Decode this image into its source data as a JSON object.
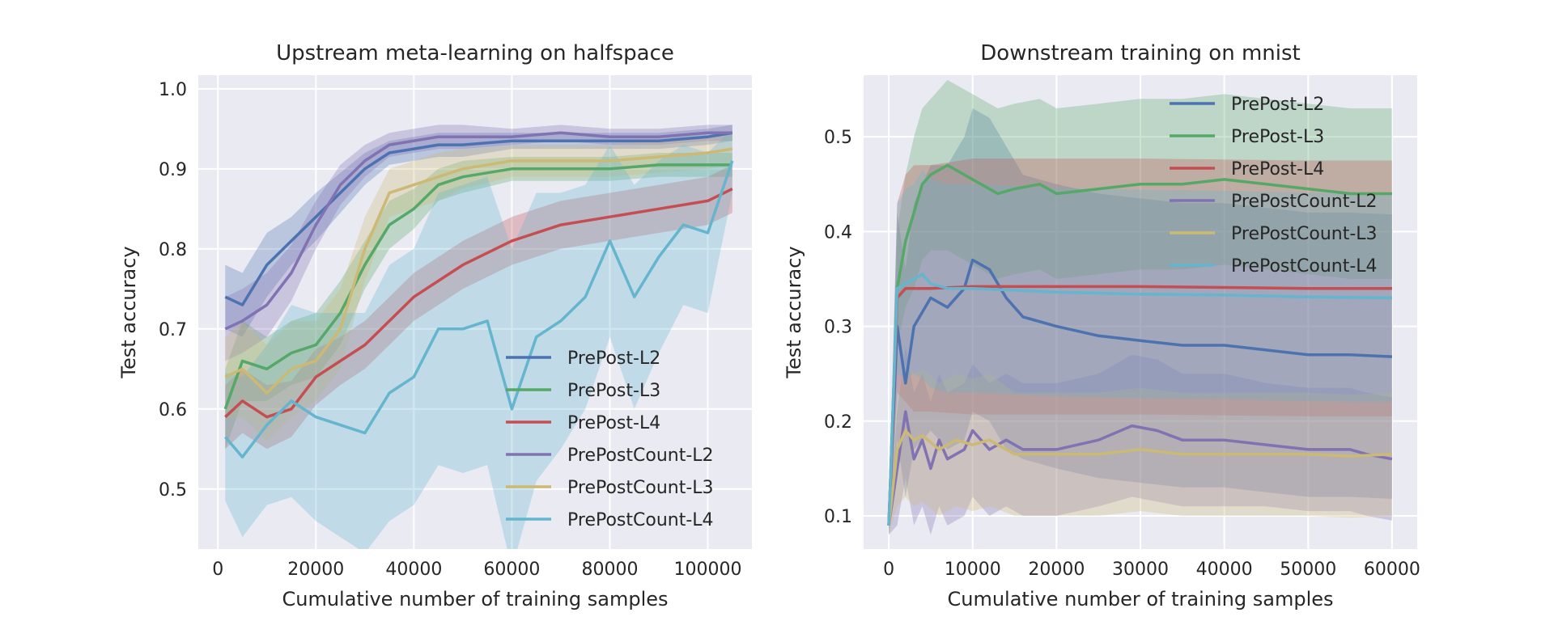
{
  "chart_data": [
    {
      "type": "line",
      "title": "Upstream meta-learning on halfspace",
      "xlabel": "Cumulative number of training samples",
      "ylabel": "Test accuracy",
      "xlim": [
        -4000,
        109000
      ],
      "ylim": [
        0.425,
        1.017
      ],
      "xticks": [
        0,
        20000,
        40000,
        60000,
        80000,
        100000
      ],
      "xtick_labels": [
        "0",
        "20000",
        "40000",
        "60000",
        "80000",
        "100000"
      ],
      "yticks": [
        0.5,
        0.6,
        0.7,
        0.8,
        0.9,
        1.0
      ],
      "ytick_labels": [
        "0.5",
        "0.6",
        "0.7",
        "0.8",
        "0.9",
        "1.0"
      ],
      "grid": true,
      "legend_position": "lower-right",
      "series": [
        {
          "name": "PrePost-L2",
          "color": "#4c72b0",
          "x": [
            1500,
            5000,
            10000,
            15000,
            20000,
            25000,
            30000,
            35000,
            40000,
            45000,
            50000,
            60000,
            70000,
            80000,
            90000,
            100000,
            105000
          ],
          "y": [
            0.74,
            0.73,
            0.78,
            0.81,
            0.84,
            0.87,
            0.9,
            0.92,
            0.925,
            0.93,
            0.93,
            0.935,
            0.935,
            0.935,
            0.935,
            0.94,
            0.945
          ],
          "band": [
            0.04,
            0.04,
            0.04,
            0.03,
            0.03,
            0.025,
            0.02,
            0.015,
            0.015,
            0.015,
            0.015,
            0.01,
            0.01,
            0.01,
            0.01,
            0.01,
            0.01
          ]
        },
        {
          "name": "PrePost-L3",
          "color": "#55a868",
          "x": [
            1500,
            5000,
            10000,
            15000,
            20000,
            25000,
            30000,
            35000,
            40000,
            45000,
            50000,
            60000,
            70000,
            80000,
            90000,
            100000,
            105000
          ],
          "y": [
            0.6,
            0.66,
            0.65,
            0.67,
            0.68,
            0.72,
            0.78,
            0.83,
            0.85,
            0.88,
            0.89,
            0.9,
            0.9,
            0.9,
            0.905,
            0.905,
            0.905
          ],
          "band": [
            0.05,
            0.05,
            0.04,
            0.04,
            0.04,
            0.04,
            0.03,
            0.03,
            0.025,
            0.02,
            0.02,
            0.015,
            0.015,
            0.015,
            0.015,
            0.015,
            0.015
          ]
        },
        {
          "name": "PrePost-L4",
          "color": "#c44e52",
          "x": [
            1500,
            5000,
            10000,
            15000,
            20000,
            25000,
            30000,
            35000,
            40000,
            45000,
            50000,
            60000,
            70000,
            80000,
            90000,
            100000,
            105000
          ],
          "y": [
            0.59,
            0.61,
            0.59,
            0.6,
            0.64,
            0.66,
            0.68,
            0.71,
            0.74,
            0.76,
            0.78,
            0.81,
            0.83,
            0.84,
            0.85,
            0.86,
            0.875
          ],
          "band": [
            0.04,
            0.04,
            0.04,
            0.035,
            0.035,
            0.03,
            0.03,
            0.03,
            0.03,
            0.03,
            0.03,
            0.03,
            0.03,
            0.03,
            0.03,
            0.03,
            0.03
          ]
        },
        {
          "name": "PrePostCount-L2",
          "color": "#8172b2",
          "x": [
            1500,
            5000,
            10000,
            15000,
            20000,
            25000,
            30000,
            35000,
            40000,
            45000,
            50000,
            60000,
            70000,
            80000,
            90000,
            100000,
            105000
          ],
          "y": [
            0.7,
            0.71,
            0.73,
            0.77,
            0.83,
            0.88,
            0.91,
            0.93,
            0.935,
            0.94,
            0.94,
            0.94,
            0.945,
            0.94,
            0.94,
            0.945,
            0.945
          ],
          "band": [
            0.04,
            0.04,
            0.04,
            0.035,
            0.03,
            0.025,
            0.02,
            0.015,
            0.015,
            0.015,
            0.015,
            0.01,
            0.01,
            0.01,
            0.01,
            0.01,
            0.01
          ]
        },
        {
          "name": "PrePostCount-L3",
          "color": "#ccb974",
          "x": [
            1500,
            5000,
            10000,
            15000,
            20000,
            25000,
            30000,
            35000,
            40000,
            45000,
            50000,
            60000,
            70000,
            80000,
            90000,
            100000,
            105000
          ],
          "y": [
            0.64,
            0.65,
            0.62,
            0.65,
            0.66,
            0.7,
            0.8,
            0.87,
            0.88,
            0.89,
            0.9,
            0.91,
            0.91,
            0.91,
            0.915,
            0.92,
            0.925
          ],
          "band": [
            0.05,
            0.06,
            0.06,
            0.06,
            0.05,
            0.05,
            0.04,
            0.03,
            0.03,
            0.03,
            0.025,
            0.02,
            0.02,
            0.02,
            0.02,
            0.02,
            0.02
          ]
        },
        {
          "name": "PrePostCount-L4",
          "color": "#64b5cd",
          "x": [
            1500,
            5000,
            10000,
            15000,
            20000,
            25000,
            30000,
            35000,
            40000,
            45000,
            50000,
            55000,
            60000,
            65000,
            70000,
            75000,
            80000,
            85000,
            90000,
            95000,
            100000,
            105000
          ],
          "y": [
            0.565,
            0.54,
            0.58,
            0.61,
            0.59,
            0.58,
            0.57,
            0.62,
            0.64,
            0.7,
            0.7,
            0.71,
            0.6,
            0.69,
            0.71,
            0.74,
            0.81,
            0.74,
            0.79,
            0.83,
            0.82,
            0.91
          ],
          "band": [
            0.08,
            0.1,
            0.1,
            0.12,
            0.13,
            0.14,
            0.15,
            0.16,
            0.16,
            0.17,
            0.18,
            0.18,
            0.2,
            0.18,
            0.16,
            0.14,
            0.12,
            0.14,
            0.12,
            0.1,
            0.1,
            0.04
          ]
        }
      ]
    },
    {
      "type": "line",
      "title": "Downstream training on mnist",
      "xlabel": "Cumulative number of training samples",
      "ylabel": "Test accuracy",
      "xlim": [
        -3000,
        63000
      ],
      "ylim": [
        0.065,
        0.565
      ],
      "xticks": [
        0,
        10000,
        20000,
        30000,
        40000,
        50000,
        60000
      ],
      "xtick_labels": [
        "0",
        "10000",
        "20000",
        "30000",
        "40000",
        "50000",
        "60000"
      ],
      "yticks": [
        0.1,
        0.2,
        0.3,
        0.4,
        0.5
      ],
      "ytick_labels": [
        "0.1",
        "0.2",
        "0.3",
        "0.4",
        "0.5"
      ],
      "grid": true,
      "legend_position": "upper-right",
      "series": [
        {
          "name": "PrePost-L2",
          "color": "#4c72b0",
          "x": [
            0,
            1000,
            2000,
            3000,
            5000,
            7000,
            9000,
            10000,
            12000,
            14000,
            16000,
            20000,
            25000,
            30000,
            35000,
            40000,
            45000,
            50000,
            55000,
            60000
          ],
          "y": [
            0.09,
            0.3,
            0.24,
            0.3,
            0.33,
            0.32,
            0.34,
            0.37,
            0.36,
            0.33,
            0.31,
            0.3,
            0.29,
            0.285,
            0.28,
            0.28,
            0.275,
            0.27,
            0.27,
            0.268
          ],
          "band": [
            0.01,
            0.12,
            0.12,
            0.13,
            0.14,
            0.15,
            0.16,
            0.16,
            0.16,
            0.16,
            0.15,
            0.15,
            0.15,
            0.15,
            0.15,
            0.15,
            0.15,
            0.15,
            0.15,
            0.15
          ]
        },
        {
          "name": "PrePost-L3",
          "color": "#55a868",
          "x": [
            0,
            1000,
            2000,
            3000,
            4000,
            5000,
            7000,
            9000,
            11000,
            13000,
            15000,
            18000,
            20000,
            25000,
            30000,
            35000,
            40000,
            45000,
            50000,
            55000,
            60000
          ],
          "y": [
            0.09,
            0.34,
            0.39,
            0.42,
            0.45,
            0.46,
            0.47,
            0.46,
            0.45,
            0.44,
            0.445,
            0.45,
            0.44,
            0.445,
            0.45,
            0.45,
            0.455,
            0.45,
            0.445,
            0.44,
            0.44
          ],
          "band": [
            0.01,
            0.06,
            0.07,
            0.08,
            0.08,
            0.08,
            0.09,
            0.09,
            0.09,
            0.09,
            0.09,
            0.09,
            0.09,
            0.09,
            0.09,
            0.09,
            0.09,
            0.09,
            0.09,
            0.09,
            0.09
          ]
        },
        {
          "name": "PrePost-L4",
          "color": "#c44e52",
          "x": [
            0,
            1000,
            2000,
            3000,
            5000,
            10000,
            20000,
            30000,
            40000,
            50000,
            60000
          ],
          "y": [
            0.09,
            0.33,
            0.34,
            0.34,
            0.34,
            0.342,
            0.342,
            0.342,
            0.341,
            0.34,
            0.34
          ],
          "band": [
            0.01,
            0.1,
            0.12,
            0.13,
            0.13,
            0.135,
            0.135,
            0.135,
            0.135,
            0.135,
            0.135
          ]
        },
        {
          "name": "PrePostCount-L2",
          "color": "#8172b2",
          "x": [
            0,
            1000,
            2000,
            3000,
            4000,
            5000,
            6000,
            7000,
            9000,
            10000,
            12000,
            14000,
            16000,
            20000,
            25000,
            29000,
            32000,
            35000,
            40000,
            45000,
            50000,
            55000,
            57000,
            60000
          ],
          "y": [
            0.09,
            0.15,
            0.21,
            0.16,
            0.18,
            0.15,
            0.18,
            0.16,
            0.17,
            0.19,
            0.17,
            0.18,
            0.17,
            0.17,
            0.18,
            0.195,
            0.19,
            0.18,
            0.18,
            0.175,
            0.17,
            0.17,
            0.165,
            0.16
          ],
          "band": [
            0.01,
            0.06,
            0.07,
            0.07,
            0.07,
            0.07,
            0.07,
            0.07,
            0.07,
            0.07,
            0.07,
            0.07,
            0.07,
            0.07,
            0.07,
            0.075,
            0.075,
            0.07,
            0.07,
            0.065,
            0.065,
            0.065,
            0.065,
            0.065
          ]
        },
        {
          "name": "PrePostCount-L3",
          "color": "#ccb974",
          "x": [
            0,
            1000,
            2000,
            3000,
            4000,
            6000,
            8000,
            10000,
            12000,
            15000,
            20000,
            25000,
            30000,
            35000,
            40000,
            45000,
            50000,
            55000,
            60000
          ],
          "y": [
            0.09,
            0.17,
            0.19,
            0.18,
            0.185,
            0.17,
            0.18,
            0.175,
            0.18,
            0.165,
            0.165,
            0.165,
            0.17,
            0.165,
            0.165,
            0.165,
            0.165,
            0.163,
            0.165
          ],
          "band": [
            0.01,
            0.06,
            0.07,
            0.07,
            0.07,
            0.07,
            0.07,
            0.07,
            0.07,
            0.065,
            0.065,
            0.065,
            0.065,
            0.065,
            0.065,
            0.065,
            0.065,
            0.065,
            0.065
          ]
        },
        {
          "name": "PrePostCount-L4",
          "color": "#64b5cd",
          "x": [
            0,
            1000,
            2000,
            3000,
            4000,
            5000,
            7000,
            10000,
            15000,
            20000,
            30000,
            40000,
            50000,
            60000
          ],
          "y": [
            0.09,
            0.34,
            0.345,
            0.35,
            0.355,
            0.345,
            0.34,
            0.34,
            0.338,
            0.336,
            0.334,
            0.333,
            0.331,
            0.33
          ],
          "band": [
            0.01,
            0.09,
            0.1,
            0.1,
            0.11,
            0.11,
            0.11,
            0.11,
            0.11,
            0.11,
            0.11,
            0.11,
            0.11,
            0.11
          ]
        }
      ]
    }
  ]
}
